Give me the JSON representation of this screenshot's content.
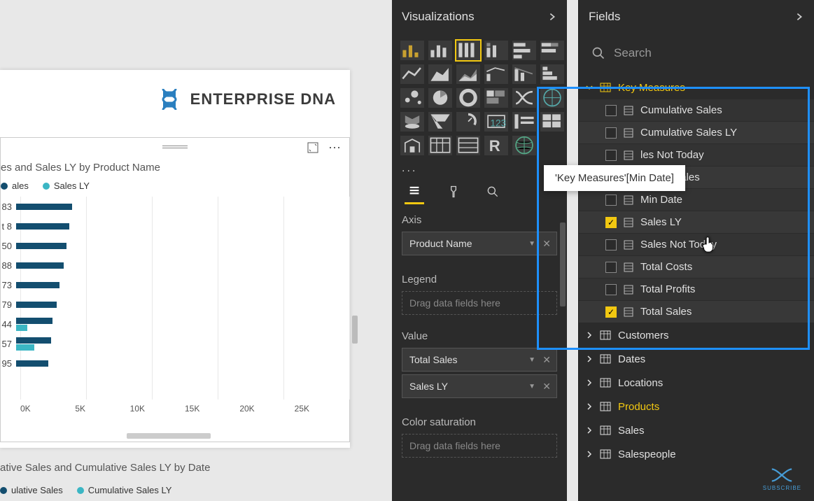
{
  "canvas": {
    "logo_text": "ENTERPRISE DNA",
    "logo_color": "#2a7fbf"
  },
  "chart": {
    "type": "bar",
    "title": "es and Sales LY by Product Name",
    "legend": [
      {
        "label": "ales",
        "color": "#134e6f"
      },
      {
        "label": "Sales LY",
        "color": "#3bb6c4"
      }
    ],
    "series_colors": {
      "primary": "#134e6f",
      "secondary": "#3bb6c4"
    },
    "rows": [
      {
        "label": "83",
        "primary": 80,
        "secondary": 0
      },
      {
        "label": "t 8",
        "primary": 76,
        "secondary": 0
      },
      {
        "label": "50",
        "primary": 72,
        "secondary": 0
      },
      {
        "label": "88",
        "primary": 68,
        "secondary": 0
      },
      {
        "label": "73",
        "primary": 62,
        "secondary": 0
      },
      {
        "label": "79",
        "primary": 58,
        "secondary": 0
      },
      {
        "label": "44",
        "primary": 52,
        "secondary": 16
      },
      {
        "label": "57",
        "primary": 50,
        "secondary": 26
      },
      {
        "label": "95",
        "primary": 46,
        "secondary": 0
      }
    ],
    "x_ticks": [
      "0K",
      "5K",
      "10K",
      "15K",
      "20K",
      "25K"
    ],
    "grid_color": "#e8e8e8",
    "background_color": "#ffffff"
  },
  "lower": {
    "title": "ative Sales and Cumulative Sales LY by Date",
    "legend": [
      {
        "label": "ulative Sales",
        "color": "#134e6f"
      },
      {
        "label": "Cumulative Sales LY",
        "color": "#3bb6c4"
      }
    ]
  },
  "viz_pane": {
    "title": "Visualizations",
    "selected_index": 2,
    "more": "...",
    "wells": {
      "axis": {
        "label": "Axis",
        "items": [
          "Product Name"
        ]
      },
      "legend": {
        "label": "Legend",
        "placeholder": "Drag data fields here"
      },
      "value": {
        "label": "Value",
        "items": [
          "Total Sales",
          "Sales LY"
        ]
      },
      "color": {
        "label": "Color saturation",
        "placeholder": "Drag data fields here"
      }
    }
  },
  "fields_pane": {
    "title": "Fields",
    "search_placeholder": "Search",
    "tooltip": "'Key Measures'[Min Date]",
    "groups": [
      {
        "name": "Key Measures",
        "expanded": true,
        "highlighted": true,
        "fields": [
          {
            "name": "Cumulative Sales",
            "checked": false
          },
          {
            "name": "Cumulative Sales LY",
            "checked": false
          },
          {
            "name": "Cumulative Sales Not Today",
            "checked": false,
            "clipped": "les Not Today"
          },
          {
            "name": "Diff. In Sales",
            "checked": false
          },
          {
            "name": "Min Date",
            "checked": false
          },
          {
            "name": "Sales LY",
            "checked": true
          },
          {
            "name": "Sales Not Today",
            "checked": false
          },
          {
            "name": "Total Costs",
            "checked": false
          },
          {
            "name": "Total Profits",
            "checked": false
          },
          {
            "name": "Total Sales",
            "checked": true
          }
        ]
      },
      {
        "name": "Customers",
        "expanded": false
      },
      {
        "name": "Dates",
        "expanded": false
      },
      {
        "name": "Locations",
        "expanded": false
      },
      {
        "name": "Products",
        "expanded": false,
        "filtered": true
      },
      {
        "name": "Sales",
        "expanded": false
      },
      {
        "name": "Salespeople",
        "expanded": false
      }
    ]
  },
  "subscribe": "SUBSCRIBE"
}
